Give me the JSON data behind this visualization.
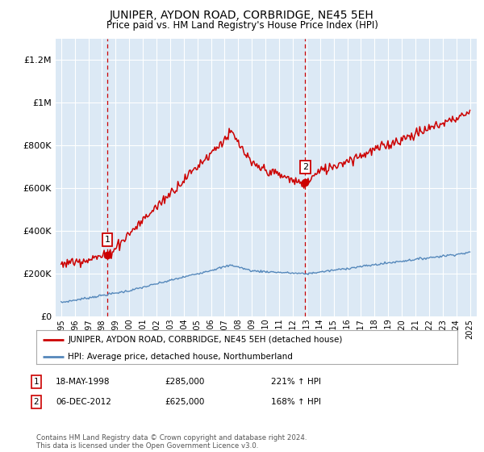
{
  "title": "JUNIPER, AYDON ROAD, CORBRIDGE, NE45 5EH",
  "subtitle": "Price paid vs. HM Land Registry's House Price Index (HPI)",
  "background_color": "#dce9f5",
  "ylim": [
    0,
    1300000
  ],
  "yticks": [
    0,
    200000,
    400000,
    600000,
    800000,
    1000000,
    1200000
  ],
  "ytick_labels": [
    "£0",
    "£200K",
    "£400K",
    "£600K",
    "£800K",
    "£1M",
    "£1.2M"
  ],
  "xlim_left": 1994.6,
  "xlim_right": 2025.5,
  "sale1": {
    "date_label": "18-MAY-1998",
    "price": 285000,
    "x_year": 1998.38,
    "label": "1"
  },
  "sale2": {
    "date_label": "06-DEC-2012",
    "price": 625000,
    "x_year": 2012.92,
    "label": "2"
  },
  "legend_entry1": "JUNIPER, AYDON ROAD, CORBRIDGE, NE45 5EH (detached house)",
  "legend_entry2": "HPI: Average price, detached house, Northumberland",
  "footer": "Contains HM Land Registry data © Crown copyright and database right 2024.\nThis data is licensed under the Open Government Licence v3.0.",
  "table_rows": [
    [
      "1",
      "18-MAY-1998",
      "£285,000",
      "221% ↑ HPI"
    ],
    [
      "2",
      "06-DEC-2012",
      "£625,000",
      "168% ↑ HPI"
    ]
  ],
  "red_line_color": "#cc0000",
  "blue_line_color": "#5588bb",
  "vline_color": "#cc0000"
}
